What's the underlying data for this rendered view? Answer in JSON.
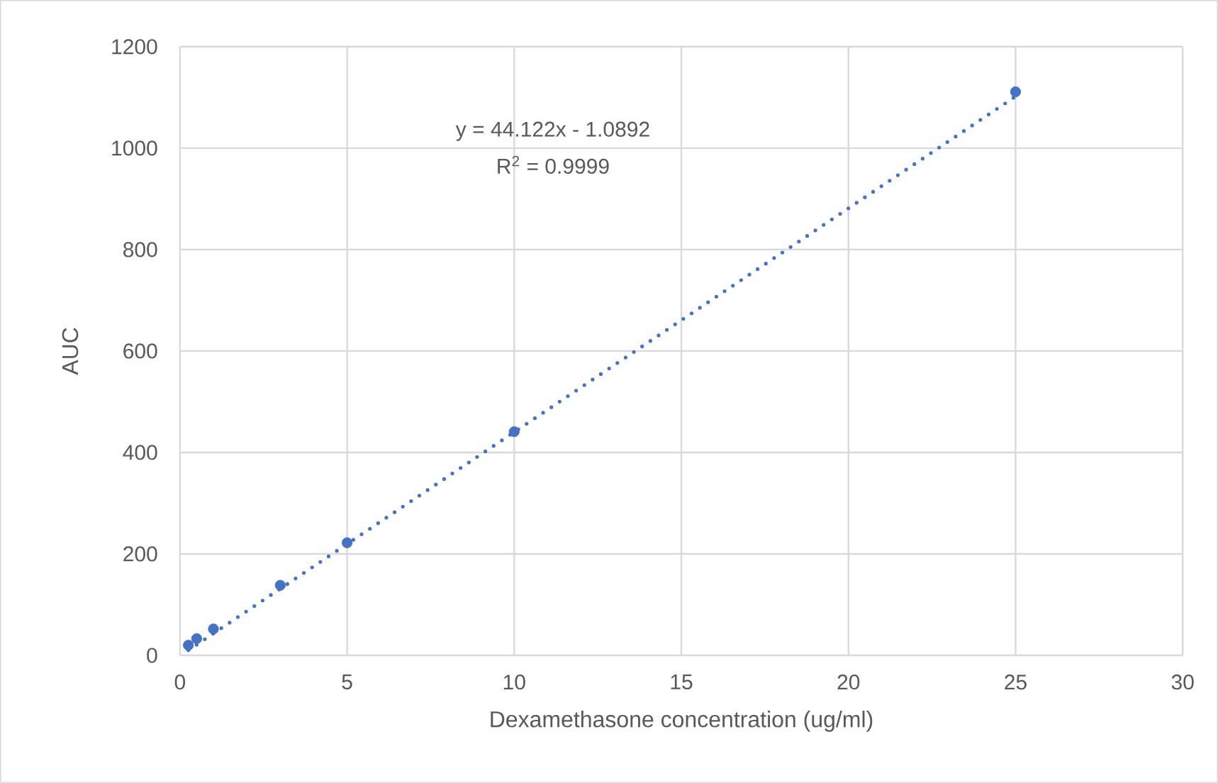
{
  "chart_data": {
    "type": "scatter",
    "xlabel": "Dexamethasone concentration (ug/ml)",
    "ylabel": "AUC",
    "series": [
      {
        "color": "#4472c4",
        "marker": "circle",
        "x": [
          0.25,
          0.5,
          1,
          3,
          5,
          10,
          25
        ],
        "values": [
          20,
          33,
          52,
          138,
          222,
          441,
          1111
        ]
      },
      {
        "type": "line",
        "color": "#4472c4",
        "marker": "none",
        "line_style": "dotted",
        "x": [
          0.25,
          25
        ],
        "values": [
          10,
          1102
        ]
      }
    ],
    "annotations": [
      "y = 44.122x - 1.0892",
      "R$^{2}$ = 0.9999"
    ],
    "xlim": [
      0,
      30
    ],
    "xticks": [
      0,
      5,
      10,
      15,
      20,
      25,
      30
    ],
    "ylim": [
      0,
      1200
    ],
    "yticks": [
      0,
      200,
      400,
      600,
      800,
      1000,
      1200
    ],
    "grid": true
  }
}
